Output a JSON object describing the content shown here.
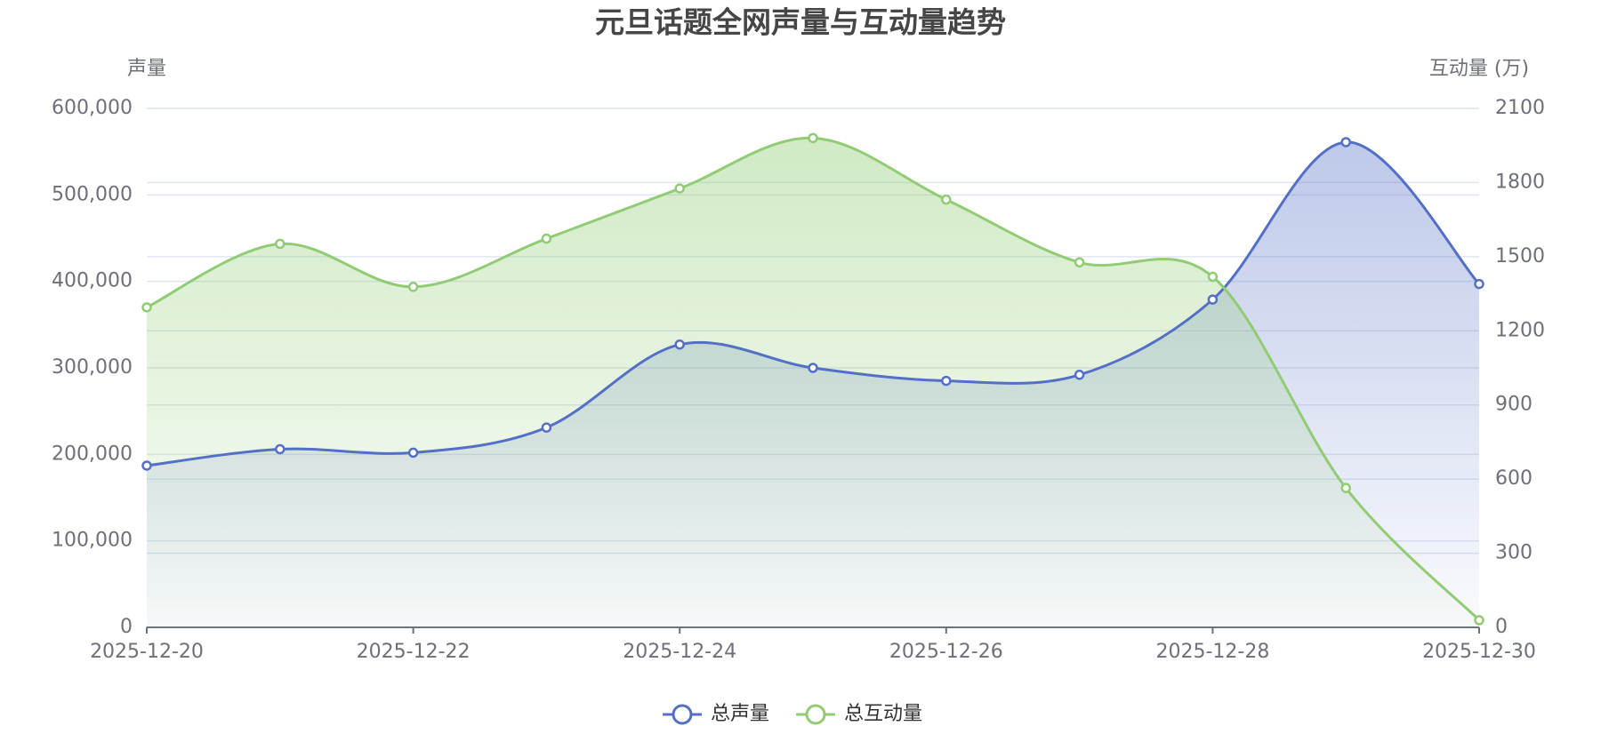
{
  "chart_data": {
    "type": "line",
    "title": "元旦话题全网声量与互动量趋势",
    "ylabel": "声量",
    "y2label": "互动量 (万)",
    "categories": [
      "2025-12-20",
      null,
      "2025-12-22",
      null,
      "2025-12-24",
      null,
      "2025-12-26",
      null,
      "2025-12-28",
      null,
      "2025-12-30"
    ],
    "series": [
      {
        "name": "总声量",
        "color": "#5470c6",
        "values": [
          187000,
          206000,
          202000,
          231000,
          327000,
          300000,
          285000,
          292000,
          379000,
          561000,
          397000
        ]
      },
      {
        "name": "总互动量",
        "color": "#91cc75",
        "axis": "y2",
        "values": [
          1295,
          1552,
          1378,
          1573,
          1776,
          1980,
          1731,
          1477,
          1419,
          564,
          29
        ]
      }
    ],
    "ylim": [
      0,
      600000
    ],
    "yticks": [
      0,
      {
        "value": 100000,
        "label": "100,000"
      },
      {
        "value": 200000,
        "label": "200,000"
      },
      {
        "value": 300000,
        "label": "300,000"
      },
      {
        "value": 400000,
        "label": "400,000"
      },
      {
        "value": 500000,
        "label": "500,000"
      },
      {
        "value": 600000,
        "label": "600,000"
      }
    ],
    "y2lim": [
      0,
      2100
    ],
    "y2ticks": [
      0,
      300,
      600,
      900,
      1200,
      1500,
      1800,
      2100
    ],
    "smooth": true,
    "area": true,
    "grid": true,
    "legend": "bottom"
  }
}
